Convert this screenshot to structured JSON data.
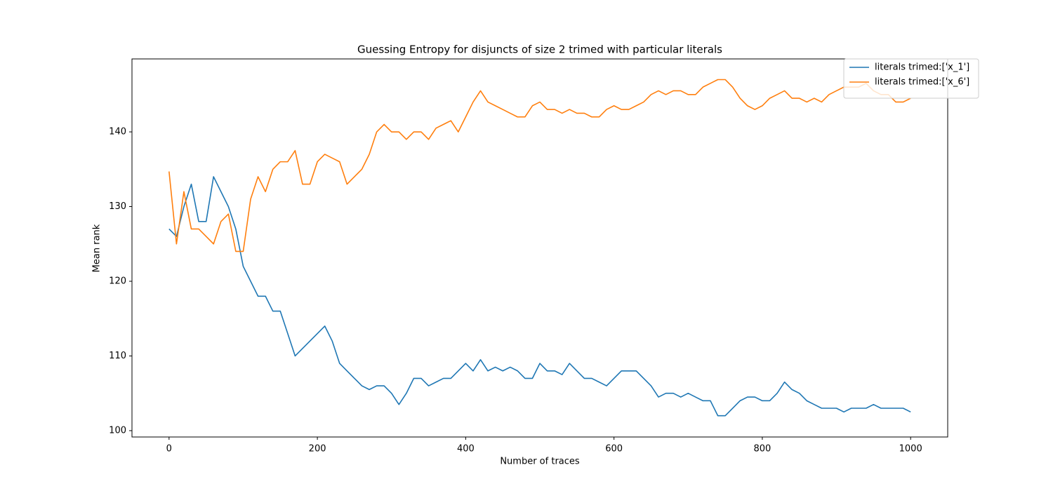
{
  "chart_data": {
    "type": "line",
    "title": "Guessing Entropy for disjuncts of size 2 trimed with particular literals",
    "x_label": "Number of traces",
    "y_label": "Mean rank",
    "x": [
      0,
      10,
      20,
      30,
      40,
      50,
      60,
      70,
      80,
      90,
      100,
      110,
      120,
      130,
      140,
      150,
      160,
      170,
      180,
      190,
      200,
      210,
      220,
      230,
      240,
      250,
      260,
      270,
      280,
      290,
      300,
      310,
      320,
      330,
      340,
      350,
      360,
      370,
      380,
      390,
      400,
      410,
      420,
      430,
      440,
      450,
      460,
      470,
      480,
      490,
      500,
      510,
      520,
      530,
      540,
      550,
      560,
      570,
      580,
      590,
      600,
      610,
      620,
      630,
      640,
      650,
      660,
      670,
      680,
      690,
      700,
      710,
      720,
      730,
      740,
      750,
      760,
      770,
      780,
      790,
      800,
      810,
      820,
      830,
      840,
      850,
      860,
      870,
      880,
      890,
      900,
      910,
      920,
      930,
      940,
      950,
      960,
      970,
      980,
      990,
      1000
    ],
    "series": [
      {
        "name": "literals trimed:['x_1']",
        "color": "#1f77b4",
        "values": [
          127,
          126,
          130,
          133,
          128,
          128,
          134,
          132,
          130,
          127,
          122,
          120,
          118,
          118,
          116,
          116,
          113,
          110,
          111,
          112,
          113,
          114,
          112,
          109,
          108,
          107,
          106,
          105.5,
          106,
          106,
          105,
          103.5,
          105,
          107,
          107,
          106,
          106.5,
          107,
          107,
          108,
          109,
          108,
          109.5,
          108,
          108.5,
          108,
          108.5,
          108,
          107,
          107,
          109,
          108,
          108,
          107.5,
          109,
          108,
          107,
          107,
          106.5,
          106,
          107,
          108,
          108,
          108,
          107,
          106,
          104.5,
          105,
          105,
          104.5,
          105,
          104.5,
          104,
          104,
          102,
          102,
          103,
          104,
          104.5,
          104.5,
          104,
          104,
          105,
          106.5,
          105.5,
          105,
          104,
          103.5,
          103,
          103,
          103,
          102.5,
          103,
          103,
          103,
          103.5,
          103,
          103,
          103,
          103,
          102.5
        ]
      },
      {
        "name": "literals trimed:['x_6']",
        "color": "#ff7f0e",
        "values": [
          134.7,
          125,
          132,
          127,
          127,
          126,
          125,
          128,
          129,
          124,
          124,
          131,
          134,
          132,
          135,
          136,
          136,
          137.5,
          133,
          133,
          136,
          137,
          136.5,
          136,
          133,
          134,
          135,
          137,
          140,
          141,
          140,
          140,
          139,
          140,
          140,
          139,
          140.5,
          141,
          141.5,
          140,
          142,
          144,
          145.5,
          144,
          143.5,
          143,
          142.5,
          142,
          142,
          143.5,
          144,
          143,
          143,
          142.5,
          143,
          142.5,
          142.5,
          142,
          142,
          143,
          143.5,
          143,
          143,
          143.5,
          144,
          145,
          145.5,
          145,
          145.5,
          145.5,
          145,
          145,
          146,
          146.5,
          147,
          147,
          146,
          144.5,
          143.5,
          143,
          143.5,
          144.5,
          145,
          145.5,
          144.5,
          144.5,
          144,
          144.5,
          144,
          145,
          145.5,
          146,
          146,
          146,
          146.5,
          145.5,
          145,
          145,
          144,
          144,
          144.5
        ]
      }
    ],
    "xlim": [
      -50,
      1050
    ],
    "ylim": [
      99.15,
      149.77
    ],
    "xticks": [
      0,
      200,
      400,
      600,
      800,
      1000
    ],
    "yticks": [
      100,
      110,
      120,
      130,
      140
    ],
    "legend": "upper right"
  }
}
